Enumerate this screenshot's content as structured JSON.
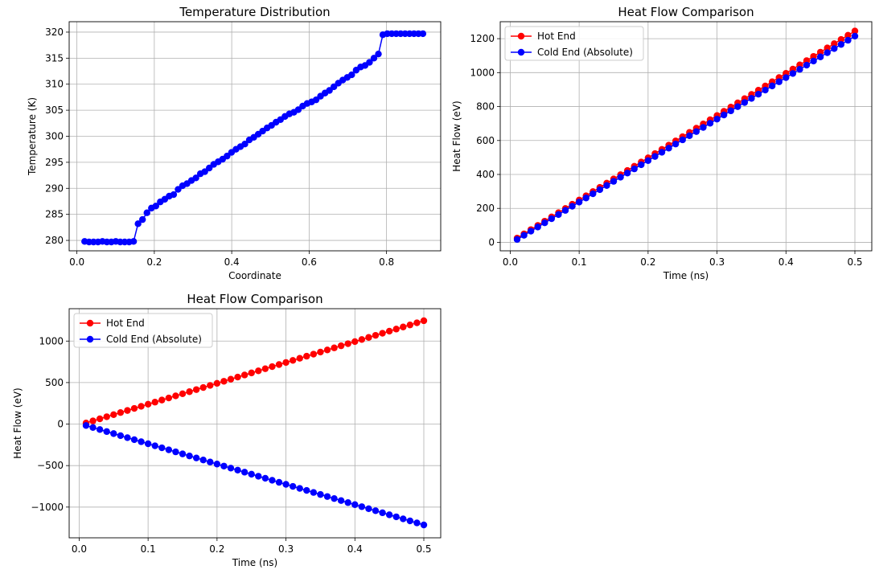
{
  "chart_data": [
    {
      "type": "line",
      "title": "Temperature Distribution",
      "xlabel": "Coordinate",
      "ylabel": "Temperature (K)",
      "xlim": [
        -0.02,
        0.94
      ],
      "ylim": [
        278,
        322
      ],
      "xticks": [
        0.0,
        0.2,
        0.4,
        0.6,
        0.8
      ],
      "xtick_labels": [
        "0.0",
        "0.2",
        "0.4",
        "0.6",
        "0.8"
      ],
      "yticks": [
        280,
        285,
        290,
        295,
        300,
        305,
        310,
        315,
        320
      ],
      "ytick_labels": [
        "280",
        "285",
        "290",
        "295",
        "300",
        "305",
        "310",
        "315",
        "320"
      ],
      "grid": true,
      "legend": null,
      "series": [
        {
          "color": "#0000ff",
          "x": [
            0.02,
            0.0315,
            0.043,
            0.0545,
            0.066,
            0.0775,
            0.089,
            0.1005,
            0.112,
            0.1235,
            0.135,
            0.1465,
            0.158,
            0.1695,
            0.181,
            0.1925,
            0.204,
            0.2155,
            0.227,
            0.2385,
            0.25,
            0.2615,
            0.273,
            0.2845,
            0.296,
            0.3075,
            0.319,
            0.3305,
            0.342,
            0.3535,
            0.365,
            0.3765,
            0.388,
            0.3995,
            0.411,
            0.4225,
            0.434,
            0.4455,
            0.457,
            0.4685,
            0.48,
            0.4915,
            0.503,
            0.5145,
            0.526,
            0.5375,
            0.549,
            0.5605,
            0.572,
            0.5835,
            0.595,
            0.6065,
            0.618,
            0.6295,
            0.641,
            0.6525,
            0.664,
            0.6755,
            0.687,
            0.6985,
            0.71,
            0.7215,
            0.733,
            0.7445,
            0.756,
            0.7675,
            0.779,
            0.7905,
            0.802,
            0.8135,
            0.825,
            0.8365,
            0.848,
            0.8595,
            0.871,
            0.8825,
            0.894
          ],
          "y": [
            279.8,
            279.7,
            279.7,
            279.7,
            279.8,
            279.7,
            279.7,
            279.8,
            279.7,
            279.7,
            279.7,
            279.8,
            283.2,
            284.0,
            285.3,
            286.2,
            286.6,
            287.4,
            287.9,
            288.5,
            288.8,
            289.8,
            290.5,
            290.9,
            291.5,
            292.0,
            292.8,
            293.2,
            293.9,
            294.6,
            295.1,
            295.6,
            296.2,
            296.9,
            297.5,
            298.0,
            298.5,
            299.3,
            299.8,
            300.4,
            301.0,
            301.6,
            302.1,
            302.7,
            303.2,
            303.8,
            304.3,
            304.6,
            305.1,
            305.8,
            306.3,
            306.6,
            307.0,
            307.7,
            308.3,
            308.8,
            309.5,
            310.2,
            310.8,
            311.3,
            311.8,
            312.7,
            313.3,
            313.6,
            314.2,
            315.0,
            315.8,
            319.5,
            319.7,
            319.7,
            319.7,
            319.7,
            319.7,
            319.7,
            319.7,
            319.7,
            319.7
          ]
        }
      ]
    },
    {
      "type": "line",
      "title": "Heat Flow Comparison",
      "xlabel": "Time (ns)",
      "ylabel": "Heat Flow (eV)",
      "xlim": [
        -0.0145,
        0.5245
      ],
      "ylim": [
        -50,
        1300
      ],
      "xticks": [
        0.0,
        0.1,
        0.2,
        0.3,
        0.4,
        0.5
      ],
      "xtick_labels": [
        "0.0",
        "0.1",
        "0.2",
        "0.3",
        "0.4",
        "0.5"
      ],
      "yticks": [
        0,
        200,
        400,
        600,
        800,
        1000,
        1200
      ],
      "ytick_labels": [
        "0",
        "200",
        "400",
        "600",
        "800",
        "1000",
        "1200"
      ],
      "grid": true,
      "legend": "top-left",
      "series": [
        {
          "name": "Hot End",
          "color": "#ff0000",
          "x_range": [
            0.01,
            0.5,
            50
          ],
          "y_range": [
            25,
            1245
          ]
        },
        {
          "name": "Cold End (Absolute)",
          "color": "#0000ff",
          "x_range": [
            0.01,
            0.5,
            50
          ],
          "y_range": [
            17,
            1215
          ]
        }
      ]
    },
    {
      "type": "line",
      "title": "Heat Flow Comparison",
      "xlabel": "Time (ns)",
      "ylabel": "Heat Flow (eV)",
      "xlim": [
        -0.0145,
        0.5245
      ],
      "ylim": [
        -1370,
        1390
      ],
      "xticks": [
        0.0,
        0.1,
        0.2,
        0.3,
        0.4,
        0.5
      ],
      "xtick_labels": [
        "0.0",
        "0.1",
        "0.2",
        "0.3",
        "0.4",
        "0.5"
      ],
      "yticks": [
        -1000,
        -500,
        0,
        500,
        1000
      ],
      "ytick_labels": [
        "−1000",
        "−500",
        "0",
        "500",
        "1000"
      ],
      "grid": true,
      "legend": "top-left",
      "series": [
        {
          "name": "Hot End",
          "color": "#ff0000",
          "x_range": [
            0.01,
            0.5,
            50
          ],
          "y_range": [
            13,
            1245
          ]
        },
        {
          "name": "Cold End (Absolute)",
          "color": "#0000ff",
          "x_range": [
            0.01,
            0.5,
            50
          ],
          "y_range": [
            -17,
            -1215
          ]
        }
      ]
    }
  ]
}
